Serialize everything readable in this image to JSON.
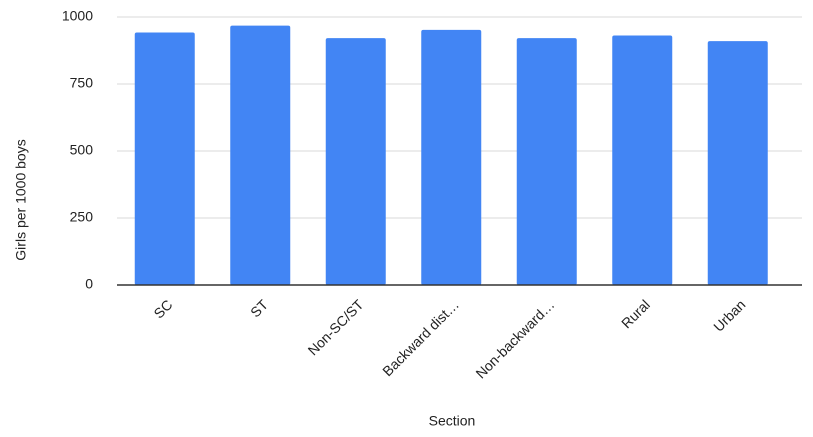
{
  "chart_data": {
    "type": "bar",
    "x_label": "Section",
    "y_label": "Girls per 1000 boys",
    "categories": [
      "SC",
      "ST",
      "Non-SC/ST",
      "Backward dist…",
      "Non-backward…",
      "Rural",
      "Urban"
    ],
    "values": [
      942,
      968,
      921,
      952,
      921,
      931,
      910
    ],
    "color": "#4285f4",
    "ylim": [
      0,
      1000
    ],
    "yticks": [
      0,
      250,
      500,
      750,
      1000
    ],
    "grid": true
  }
}
